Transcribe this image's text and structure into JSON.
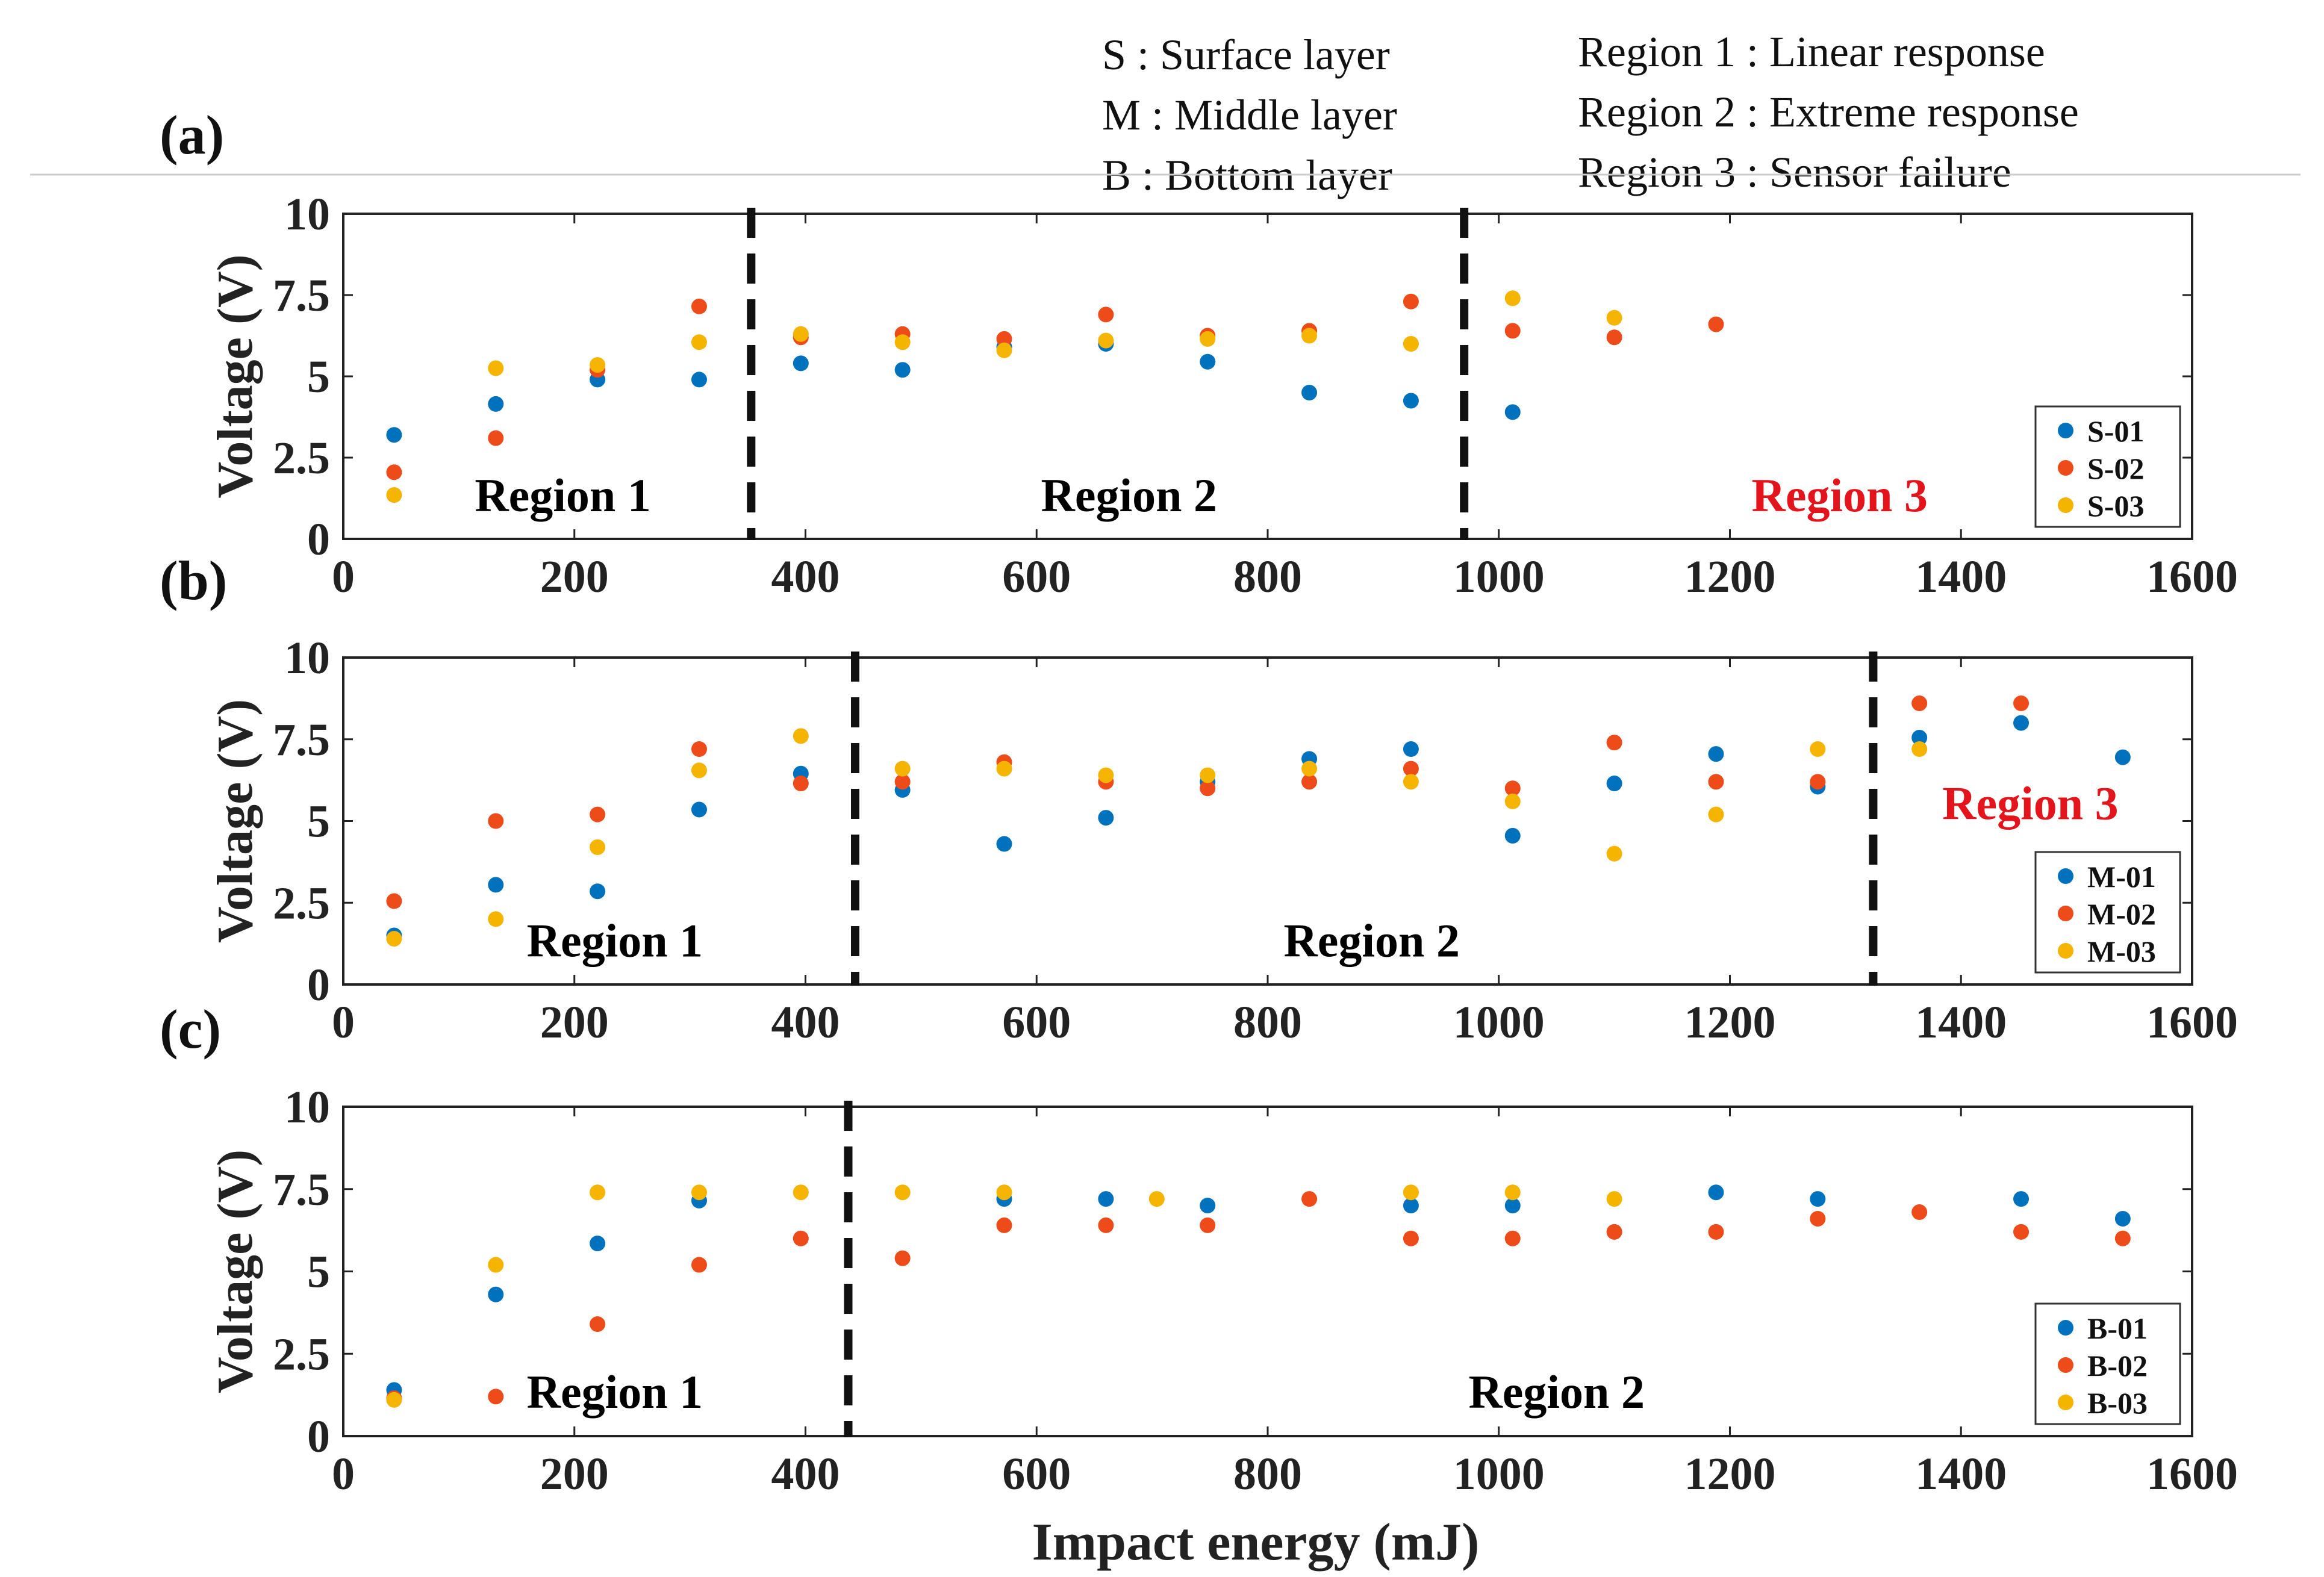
{
  "legend_notes": {
    "layers": [
      "S : Surface layer",
      "M : Middle layer",
      "B : Bottom layer"
    ],
    "regions": [
      "Region 1 : Linear response",
      "Region 2 : Extreme response",
      "Region 3 : Sensor failure"
    ]
  },
  "colors": {
    "blue": "#0072BD",
    "orange": "#EE4B1A",
    "yellow": "#F5B400",
    "region3": "#E3141B"
  },
  "chart_data": [
    {
      "type": "scatter",
      "panel_label": "(a)",
      "xlabel": "Impact energy (mJ)",
      "ylabel": "Voltage (V)",
      "xlim": [
        0,
        1600
      ],
      "ylim": [
        0,
        10
      ],
      "xticks": [
        "0",
        "200",
        "400",
        "600",
        "800",
        "1000",
        "1200",
        "1400",
        "1600"
      ],
      "yticks": [
        "0",
        "2.5",
        "5",
        "7.5",
        "10"
      ],
      "boundaries": [
        353,
        970
      ],
      "regions": [
        {
          "label": "Region 1",
          "x": 190,
          "y": 1.3,
          "color": "#000000"
        },
        {
          "label": "Region 2",
          "x": 680,
          "y": 1.3,
          "color": "#000000"
        },
        {
          "label": "Region 3",
          "x": 1295,
          "y": 1.3,
          "color": "#E3141B"
        }
      ],
      "series": [
        {
          "name": "S-01",
          "color": "#0072BD",
          "x": [
            44,
            132,
            220,
            308,
            396,
            484,
            572,
            660,
            748,
            836,
            924,
            1012
          ],
          "y": [
            3.2,
            4.15,
            4.9,
            4.9,
            5.4,
            5.2,
            5.9,
            6.0,
            5.45,
            4.5,
            4.25,
            3.9
          ]
        },
        {
          "name": "S-02",
          "color": "#EE4B1A",
          "x": [
            44,
            132,
            220,
            308,
            396,
            484,
            572,
            660,
            748,
            836,
            924,
            1012,
            1100,
            1188
          ],
          "y": [
            2.05,
            3.1,
            5.2,
            7.15,
            6.2,
            6.3,
            6.15,
            6.9,
            6.25,
            6.4,
            7.3,
            6.4,
            6.2,
            6.6
          ]
        },
        {
          "name": "S-03",
          "color": "#F5B400",
          "x": [
            44,
            132,
            220,
            308,
            396,
            484,
            572,
            660,
            748,
            836,
            924,
            1012,
            1100
          ],
          "y": [
            1.35,
            5.25,
            5.35,
            6.05,
            6.3,
            6.05,
            5.8,
            6.1,
            6.15,
            6.25,
            6.0,
            7.4,
            6.8
          ]
        }
      ],
      "legend_position": "bottom-right"
    },
    {
      "type": "scatter",
      "panel_label": "(b)",
      "xlabel": "Impact energy (mJ)",
      "ylabel": "Voltage (V)",
      "xlim": [
        0,
        1600
      ],
      "ylim": [
        0,
        10
      ],
      "xticks": [
        "0",
        "200",
        "400",
        "600",
        "800",
        "1000",
        "1200",
        "1400",
        "1600"
      ],
      "yticks": [
        "0",
        "2.5",
        "5",
        "7.5",
        "10"
      ],
      "boundaries": [
        443,
        1324
      ],
      "regions": [
        {
          "label": "Region 1",
          "x": 235,
          "y": 1.3,
          "color": "#000000"
        },
        {
          "label": "Region 2",
          "x": 890,
          "y": 1.3,
          "color": "#000000"
        },
        {
          "label": "Region 3",
          "x": 1460,
          "y": 5.5,
          "color": "#E3141B"
        }
      ],
      "series": [
        {
          "name": "M-01",
          "color": "#0072BD",
          "x": [
            44,
            132,
            220,
            308,
            396,
            484,
            572,
            660,
            748,
            836,
            924,
            1012,
            1100,
            1188,
            1276,
            1364,
            1452,
            1540
          ],
          "y": [
            1.5,
            3.05,
            2.85,
            5.35,
            6.45,
            5.95,
            4.3,
            5.1,
            6.2,
            6.9,
            7.2,
            4.55,
            6.15,
            7.05,
            6.05,
            7.55,
            8.0,
            6.95
          ]
        },
        {
          "name": "M-02",
          "color": "#EE4B1A",
          "x": [
            44,
            132,
            220,
            308,
            396,
            484,
            572,
            660,
            748,
            836,
            924,
            1012,
            1100,
            1188,
            1276,
            1364,
            1452
          ],
          "y": [
            2.55,
            5.0,
            5.2,
            7.2,
            6.15,
            6.2,
            6.8,
            6.2,
            6.0,
            6.2,
            6.6,
            6.0,
            7.4,
            6.2,
            6.2,
            8.6,
            8.6
          ]
        },
        {
          "name": "M-03",
          "color": "#F5B400",
          "x": [
            44,
            132,
            220,
            308,
            396,
            484,
            572,
            660,
            748,
            836,
            924,
            1012,
            1100,
            1188,
            1276,
            1364
          ],
          "y": [
            1.4,
            2.0,
            4.2,
            6.55,
            7.6,
            6.6,
            6.6,
            6.4,
            6.4,
            6.6,
            6.2,
            5.6,
            4.0,
            5.2,
            7.2,
            7.2
          ]
        }
      ],
      "legend_position": "bottom-right"
    },
    {
      "type": "scatter",
      "panel_label": "(c)",
      "xlabel": "Impact energy (mJ)",
      "ylabel": "Voltage (V)",
      "xlim": [
        0,
        1600
      ],
      "ylim": [
        0,
        10
      ],
      "xticks": [
        "0",
        "200",
        "400",
        "600",
        "800",
        "1000",
        "1200",
        "1400",
        "1600"
      ],
      "yticks": [
        "0",
        "2.5",
        "5",
        "7.5",
        "10"
      ],
      "boundaries": [
        437
      ],
      "regions": [
        {
          "label": "Region 1",
          "x": 235,
          "y": 1.3,
          "color": "#000000"
        },
        {
          "label": "Region 2",
          "x": 1050,
          "y": 1.3,
          "color": "#000000"
        }
      ],
      "series": [
        {
          "name": "B-01",
          "color": "#0072BD",
          "x": [
            44,
            132,
            220,
            308,
            572,
            660,
            748,
            924,
            1012,
            1188,
            1276,
            1452,
            1540
          ],
          "y": [
            1.4,
            4.3,
            5.85,
            7.15,
            7.2,
            7.2,
            7.0,
            7.0,
            7.0,
            7.4,
            7.2,
            7.2,
            6.6
          ]
        },
        {
          "name": "B-02",
          "color": "#EE4B1A",
          "x": [
            44,
            132,
            220,
            308,
            396,
            484,
            572,
            660,
            748,
            836,
            924,
            1012,
            1100,
            1188,
            1276,
            1364,
            1452,
            1540
          ],
          "y": [
            1.15,
            1.2,
            3.4,
            5.2,
            6.0,
            5.4,
            6.4,
            6.4,
            6.4,
            7.2,
            6.0,
            6.0,
            6.2,
            6.2,
            6.6,
            6.8,
            6.2,
            6.0
          ]
        },
        {
          "name": "B-03",
          "color": "#F5B400",
          "x": [
            44,
            132,
            220,
            308,
            396,
            484,
            572,
            704,
            924,
            1012,
            1100
          ],
          "y": [
            1.1,
            5.2,
            7.4,
            7.4,
            7.4,
            7.4,
            7.4,
            7.2,
            7.4,
            7.4,
            7.2
          ]
        }
      ],
      "legend_position": "bottom-right"
    }
  ]
}
